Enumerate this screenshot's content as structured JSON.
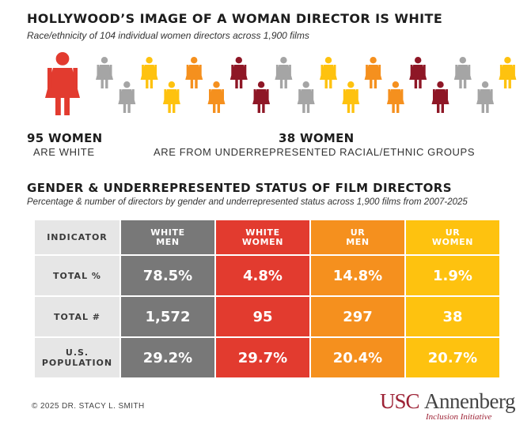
{
  "header": {
    "title": "HOLLYWOOD’S IMAGE OF A WOMAN DIRECTOR IS WHITE",
    "subtitle": "Race/ethnicity of 104 individual women directors across 1,900 films"
  },
  "stats": {
    "white_number": "95 WOMEN",
    "white_label": "ARE WHITE",
    "ur_number": "38 WOMEN",
    "ur_label": "ARE FROM UNDERREPRESENTED RACIAL/ETHNIC GROUPS"
  },
  "colors": {
    "white_men": "#787878",
    "white_women": "#e23b2f",
    "ur_men": "#f5901e",
    "ur_women": "#fec20f",
    "dark_red": "#8e1726",
    "figure_gray": "#a5a5a5"
  },
  "section2": {
    "title": "GENDER & UNDERREPRESENTED STATUS OF FILM DIRECTORS",
    "subtitle": "Percentage & number of directors by gender and underrepresented status across 1,900 films from 2007-2025"
  },
  "chart_data": [
    {
      "type": "pictograph",
      "icon": "woman-figure-icon",
      "figures": [
        {
          "color": "red",
          "big": true
        },
        {
          "color": "gray"
        },
        {
          "color": "gray"
        },
        {
          "color": "yellow"
        },
        {
          "color": "yellow"
        },
        {
          "color": "orange"
        },
        {
          "color": "orange"
        },
        {
          "color": "darkred"
        },
        {
          "color": "darkred"
        },
        {
          "color": "gray"
        },
        {
          "color": "gray"
        },
        {
          "color": "yellow"
        },
        {
          "color": "yellow"
        },
        {
          "color": "orange"
        },
        {
          "color": "orange"
        },
        {
          "color": "darkred"
        },
        {
          "color": "darkred"
        },
        {
          "color": "gray"
        },
        {
          "color": "gray"
        },
        {
          "color": "yellow"
        }
      ]
    },
    {
      "type": "table",
      "corner_label": "INDICATOR",
      "columns": [
        {
          "line1": "WHITE",
          "line2": "MEN",
          "color": "#787878"
        },
        {
          "line1": "WHITE",
          "line2": "WOMEN",
          "color": "#e23b2f"
        },
        {
          "line1": "UR",
          "line2": "MEN",
          "color": "#f5901e"
        },
        {
          "line1": "UR",
          "line2": "WOMEN",
          "color": "#fec20f"
        }
      ],
      "rows": [
        {
          "label1": "TOTAL %",
          "label2": "",
          "values": [
            "78.5%",
            "4.8%",
            "14.8%",
            "1.9%"
          ]
        },
        {
          "label1": "TOTAL #",
          "label2": "",
          "values": [
            "1,572",
            "95",
            "297",
            "38"
          ]
        },
        {
          "label1": "U.S.",
          "label2": "POPULATION",
          "values": [
            "29.2%",
            "29.7%",
            "20.4%",
            "20.7%"
          ]
        }
      ]
    }
  ],
  "footer": {
    "copyright": "© 2025 DR. STACY L. SMITH",
    "logo_usc": "USC",
    "logo_annenberg": "Annenberg",
    "logo_sub": "Inclusion Initiative"
  }
}
